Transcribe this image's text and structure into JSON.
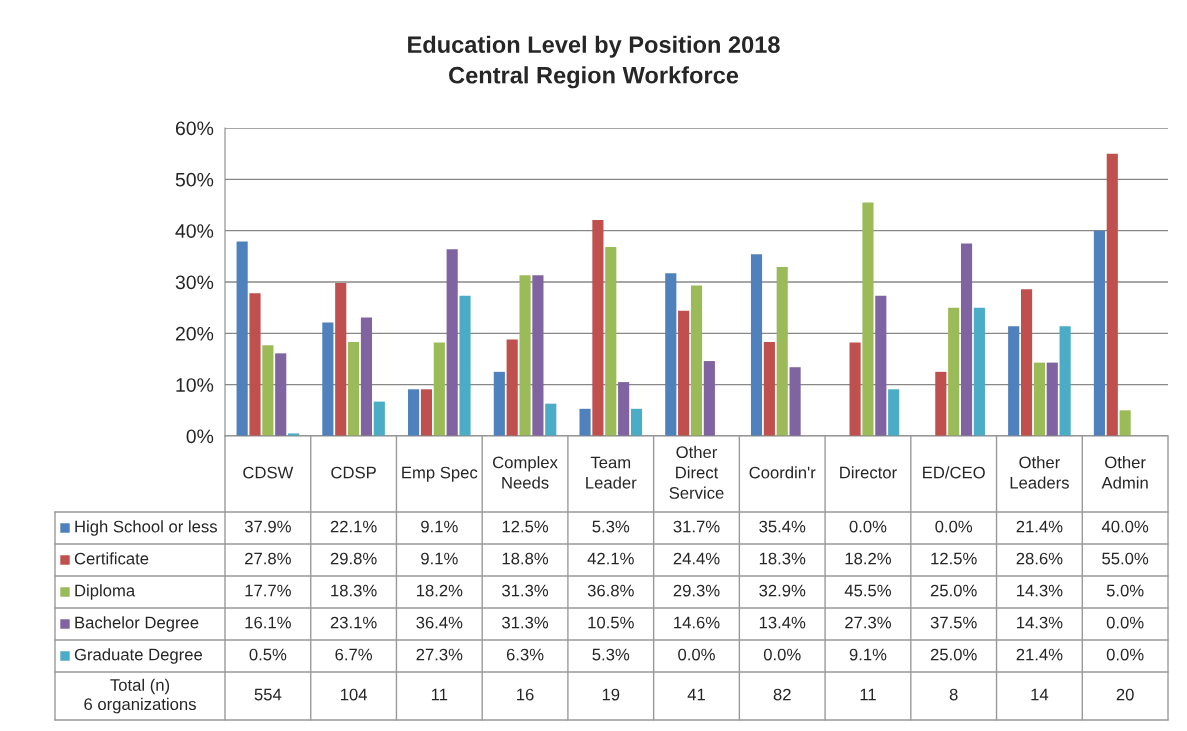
{
  "chart_data": {
    "type": "bar",
    "title": "Education Level by Position 2018\nCentral Region Workforce",
    "categories": [
      "CDSW",
      "CDSP",
      "Emp Spec",
      "Complex\nNeeds",
      "Team\nLeader",
      "Other\nDirect\nService",
      "Coordin'r",
      "Director",
      "ED/CEO",
      "Other\nLeaders",
      "Other\nAdmin"
    ],
    "series": [
      {
        "name": "High School or less",
        "color": "#4f81bd",
        "values": [
          37.9,
          22.1,
          9.1,
          12.5,
          5.3,
          31.7,
          35.4,
          0.0,
          0.0,
          21.4,
          40.0
        ],
        "value_labels": [
          "37.9%",
          "22.1%",
          "9.1%",
          "12.5%",
          "5.3%",
          "31.7%",
          "35.4%",
          "0.0%",
          "0.0%",
          "21.4%",
          "40.0%"
        ]
      },
      {
        "name": "Certificate",
        "color": "#c0504d",
        "values": [
          27.8,
          29.8,
          9.1,
          18.8,
          42.1,
          24.4,
          18.3,
          18.2,
          12.5,
          28.6,
          55.0
        ],
        "value_labels": [
          "27.8%",
          "29.8%",
          "9.1%",
          "18.8%",
          "42.1%",
          "24.4%",
          "18.3%",
          "18.2%",
          "12.5%",
          "28.6%",
          "55.0%"
        ]
      },
      {
        "name": "Diploma",
        "color": "#9bbb59",
        "values": [
          17.7,
          18.3,
          18.2,
          31.3,
          36.8,
          29.3,
          32.9,
          45.5,
          25.0,
          14.3,
          5.0
        ],
        "value_labels": [
          "17.7%",
          "18.3%",
          "18.2%",
          "31.3%",
          "36.8%",
          "29.3%",
          "32.9%",
          "45.5%",
          "25.0%",
          "14.3%",
          "5.0%"
        ]
      },
      {
        "name": "Bachelor Degree",
        "color": "#8064a2",
        "values": [
          16.1,
          23.1,
          36.4,
          31.3,
          10.5,
          14.6,
          13.4,
          27.3,
          37.5,
          14.3,
          0.0
        ],
        "value_labels": [
          "16.1%",
          "23.1%",
          "36.4%",
          "31.3%",
          "10.5%",
          "14.6%",
          "13.4%",
          "27.3%",
          "37.5%",
          "14.3%",
          "0.0%"
        ]
      },
      {
        "name": "Graduate Degree",
        "color": "#4bacc6",
        "values": [
          0.5,
          6.7,
          27.3,
          6.3,
          5.3,
          0.0,
          0.0,
          9.1,
          25.0,
          21.4,
          0.0
        ],
        "value_labels": [
          "0.5%",
          "6.7%",
          "27.3%",
          "6.3%",
          "5.3%",
          "0.0%",
          "0.0%",
          "9.1%",
          "25.0%",
          "21.4%",
          "0.0%"
        ]
      }
    ],
    "ylim": [
      0,
      60
    ],
    "yticks": [
      {
        "value": 0,
        "label": "0%"
      },
      {
        "value": 10,
        "label": "10%"
      },
      {
        "value": 20,
        "label": "20%"
      },
      {
        "value": 30,
        "label": "30%"
      },
      {
        "value": 40,
        "label": "40%"
      },
      {
        "value": 50,
        "label": "50%"
      },
      {
        "value": 60,
        "label": "60%"
      }
    ],
    "grid": "y",
    "legend": "bottom",
    "annotations": [
      "Total (n)\n6 organizations",
      "554",
      "104",
      "11",
      "16",
      "19",
      "41",
      "82",
      "11",
      "8",
      "14",
      "20"
    ]
  }
}
